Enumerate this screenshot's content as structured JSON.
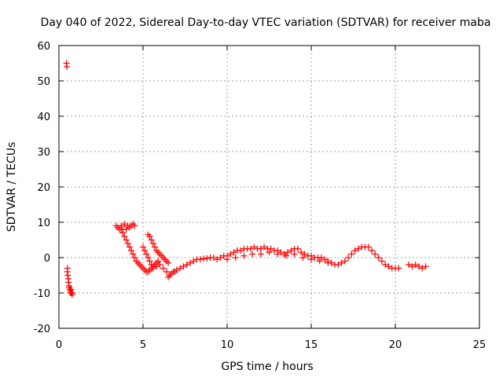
{
  "chart_data": {
    "type": "scatter",
    "title": "Day 040 of 2022, Sidereal Day-to-day VTEC variation (SDTVAR) for receiver maba",
    "xlabel": "GPS time / hours",
    "ylabel": "SDTVAR / TECUs",
    "xlim": [
      0,
      25
    ],
    "ylim": [
      -20,
      60
    ],
    "xticks": [
      0,
      5,
      10,
      15,
      20,
      25
    ],
    "yticks": [
      -20,
      -10,
      0,
      10,
      20,
      30,
      40,
      50,
      60
    ],
    "grid": true,
    "marker": "+",
    "series": [
      {
        "name": "SDTVAR",
        "color": "#ff0000",
        "x": [
          0.45,
          0.47,
          0.5,
          0.5,
          0.52,
          0.55,
          0.57,
          0.6,
          0.62,
          0.65,
          0.68,
          0.7,
          0.72,
          0.75,
          0.78,
          0.8,
          3.4,
          3.5,
          3.6,
          3.7,
          3.8,
          3.9,
          4.0,
          4.1,
          4.2,
          4.3,
          4.4,
          4.5,
          3.7,
          3.8,
          3.9,
          4.0,
          4.1,
          4.2,
          4.3,
          4.4,
          4.5,
          4.6,
          4.7,
          4.8,
          4.9,
          5.0,
          5.1,
          5.2,
          5.3,
          5.4,
          5.5,
          5.6,
          5.7,
          5.8,
          5.9,
          5.0,
          5.1,
          5.2,
          5.3,
          5.4,
          5.5,
          5.6,
          5.8,
          6.0,
          6.2,
          6.4,
          6.6,
          5.3,
          5.4,
          5.5,
          5.6,
          5.7,
          5.8,
          5.9,
          6.0,
          6.1,
          6.2,
          6.3,
          6.4,
          6.5,
          6.5,
          6.6,
          6.7,
          6.8,
          6.9,
          7.0,
          7.2,
          7.4,
          7.6,
          7.8,
          8.0,
          8.2,
          8.4,
          8.6,
          8.8,
          9.0,
          9.2,
          9.4,
          9.6,
          9.8,
          10.0,
          10.2,
          10.4,
          10.6,
          10.8,
          11.0,
          11.2,
          11.4,
          11.6,
          11.8,
          12.0,
          12.2,
          12.4,
          12.6,
          12.8,
          13.0,
          13.2,
          13.4,
          13.6,
          13.8,
          14.0,
          14.2,
          14.4,
          14.6,
          14.8,
          15.0,
          15.2,
          15.4,
          15.6,
          15.8,
          16.0,
          16.2,
          16.4,
          16.6,
          16.8,
          17.0,
          17.2,
          17.4,
          17.6,
          17.8,
          18.0,
          18.2,
          18.4,
          18.6,
          18.8,
          19.0,
          19.2,
          19.4,
          19.6,
          19.8,
          20.0,
          20.2,
          20.8,
          21.0,
          21.2,
          21.4,
          21.6,
          21.8,
          10.0,
          10.5,
          11.0,
          11.5,
          12.0,
          12.5,
          13.0,
          13.5,
          14.0,
          14.5,
          15.0,
          15.5,
          16.0
        ],
        "y": [
          55,
          54,
          -3,
          -4,
          -5,
          -6,
          -7,
          -8,
          -8.5,
          -9,
          -9.5,
          -10,
          -9,
          -10,
          -10.5,
          -10,
          9,
          8.5,
          8,
          9,
          8,
          9.5,
          8,
          9,
          8.5,
          9,
          9.5,
          9,
          8,
          7,
          6,
          5,
          4,
          3,
          2,
          1,
          0,
          -1,
          -1.5,
          -2,
          -2.5,
          -3,
          -3.5,
          -4,
          -4,
          -3.5,
          -3,
          -2.5,
          -2,
          -1.5,
          -1,
          3,
          2,
          1,
          0,
          -1,
          -2,
          -3,
          -2.5,
          -2,
          -3,
          -4,
          -5,
          6.5,
          6,
          5,
          4,
          3,
          2,
          1.5,
          1,
          0.5,
          0,
          -0.5,
          -1,
          -1.5,
          -5.5,
          -5,
          -4.5,
          -4,
          -4,
          -3.5,
          -3,
          -2.5,
          -2,
          -1.5,
          -1,
          -0.5,
          -0.5,
          -0.3,
          -0.2,
          0,
          0,
          -0.5,
          0,
          0.5,
          0.5,
          1,
          1.5,
          2,
          2,
          2.5,
          2.5,
          2.5,
          3,
          2.5,
          2.5,
          3,
          2.5,
          2.5,
          2,
          2,
          1.5,
          1,
          1.5,
          2,
          2.5,
          2.5,
          1.5,
          1,
          0.5,
          0.5,
          0,
          0,
          0,
          -0.5,
          -1,
          -1.5,
          -2,
          -2,
          -1.5,
          -1,
          0,
          1,
          2,
          2.5,
          3,
          3,
          3,
          2,
          1,
          0,
          -1,
          -2,
          -2.5,
          -3,
          -3,
          -3,
          -2,
          -2.5,
          -2,
          -2.5,
          -3,
          -2.5,
          -0.5,
          0,
          0.5,
          1,
          1,
          1.5,
          1,
          0.5,
          1,
          0,
          -0.5,
          -1,
          -1.5
        ]
      }
    ]
  }
}
